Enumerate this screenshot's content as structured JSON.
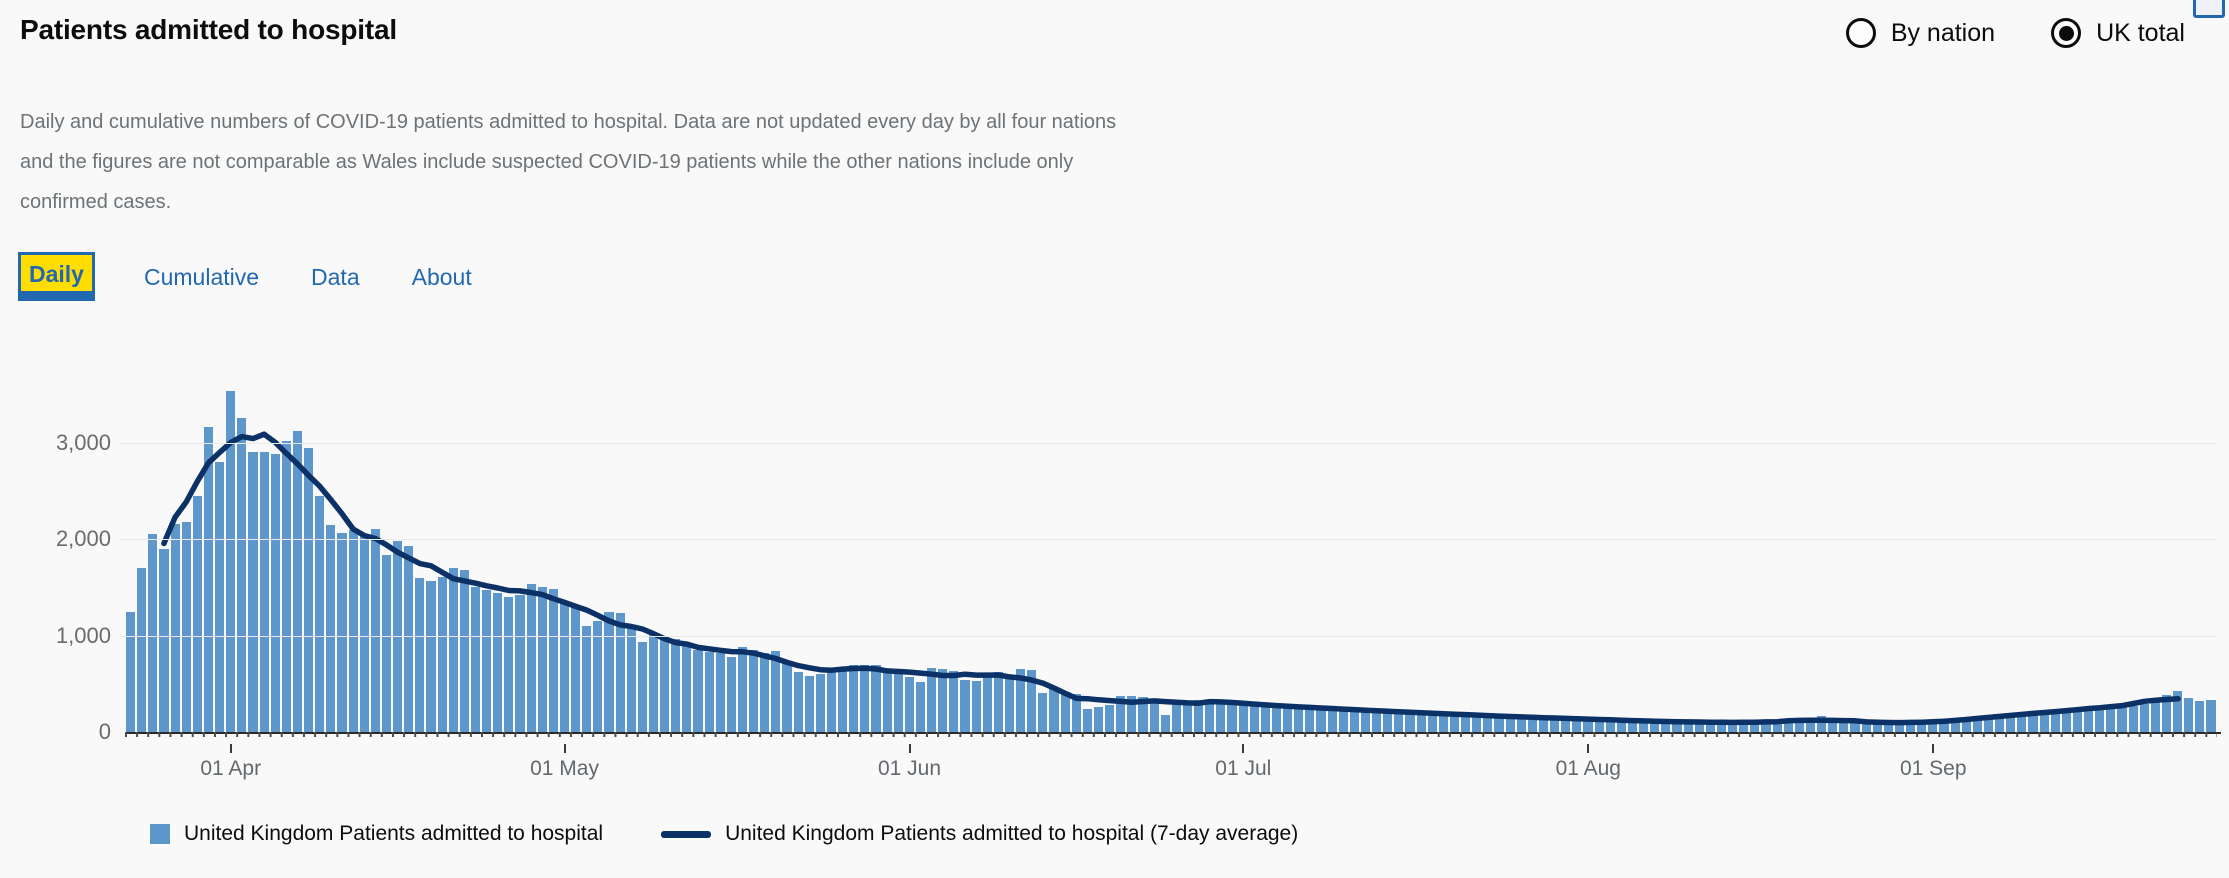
{
  "header": {
    "title": "Patients admitted to hospital",
    "description": "Daily and cumulative numbers of COVID-19 patients admitted to hospital. Data are not updated every day by all four nations and the figures are not comparable as Wales include suspected COVID-19 patients while the other nations include only confirmed cases."
  },
  "view_toggle": {
    "options": [
      {
        "label": "By nation",
        "selected": false
      },
      {
        "label": "UK total",
        "selected": true
      }
    ]
  },
  "tabs": [
    {
      "label": "Daily",
      "active": true
    },
    {
      "label": "Cumulative",
      "active": false
    },
    {
      "label": "Data",
      "active": false
    },
    {
      "label": "About",
      "active": false
    }
  ],
  "legend": [
    {
      "label": "United Kingdom Patients admitted to hospital",
      "swatch": "square",
      "color": "#5d97cc"
    },
    {
      "label": "United Kingdom Patients admitted to hospital (7-day average)",
      "swatch": "line",
      "color": "#0b3166"
    }
  ],
  "colors": {
    "background": "#f9f9f9",
    "bar": "#5d97cc",
    "average_line": "#0b3166",
    "link_blue": "#2268b1",
    "tab_highlight_yellow": "#ffdd00",
    "text_dark": "#0b0c0c",
    "text_gray": "#6c7276",
    "gridline": "#e9e9e9"
  },
  "chart_data": {
    "type": "bar",
    "title": "Patients admitted to hospital (daily, UK total)",
    "xlabel": "",
    "ylabel": "",
    "start_date": "2020-03-23",
    "y_max": 3600,
    "grid": true,
    "legend_position": "bottom",
    "y_ticks": [
      {
        "value": 0,
        "label": "0"
      },
      {
        "value": 1000,
        "label": "1,000"
      },
      {
        "value": 2000,
        "label": "2,000"
      },
      {
        "value": 3000,
        "label": "3,000"
      }
    ],
    "x_ticks": [
      {
        "index": 9,
        "label": "01 Apr"
      },
      {
        "index": 39,
        "label": "01 May"
      },
      {
        "index": 70,
        "label": "01 Jun"
      },
      {
        "index": 100,
        "label": "01 Jul"
      },
      {
        "index": 131,
        "label": "01 Aug"
      },
      {
        "index": 162,
        "label": "01 Sep"
      }
    ],
    "series": [
      {
        "name": "United Kingdom Patients admitted to hospital",
        "type": "bar",
        "color": "#5d97cc",
        "values": [
          1250,
          1700,
          2050,
          1900,
          2160,
          2180,
          2450,
          3160,
          2800,
          3540,
          3260,
          2910,
          2900,
          2880,
          3020,
          3120,
          2950,
          2450,
          2150,
          2060,
          2100,
          2030,
          2110,
          1840,
          1980,
          1930,
          1600,
          1570,
          1610,
          1700,
          1680,
          1505,
          1470,
          1440,
          1400,
          1420,
          1540,
          1500,
          1480,
          1340,
          1300,
          1100,
          1150,
          1250,
          1230,
          1100,
          930,
          1020,
          980,
          970,
          910,
          855,
          830,
          820,
          780,
          880,
          855,
          820,
          840,
          730,
          625,
          580,
          605,
          625,
          660,
          700,
          695,
          700,
          625,
          625,
          570,
          520,
          660,
          650,
          630,
          540,
          530,
          570,
          620,
          590,
          650,
          640,
          400,
          450,
          420,
          395,
          235,
          260,
          280,
          375,
          375,
          360,
          335,
          180,
          310,
          320,
          330,
          325,
          315,
          310,
          295,
          290,
          280,
          270,
          265,
          260,
          255,
          250,
          245,
          240,
          230,
          225,
          220,
          215,
          210,
          205,
          200,
          195,
          190,
          185,
          180,
          175,
          170,
          165,
          160,
          155,
          150,
          150,
          145,
          140,
          140,
          135,
          130,
          125,
          120,
          120,
          115,
          110,
          110,
          105,
          105,
          100,
          100,
          100,
          105,
          100,
          95,
          100,
          105,
          110,
          115,
          120,
          170,
          120,
          110,
          105,
          100,
          100,
          105,
          95,
          90,
          95,
          100,
          110,
          120,
          130,
          140,
          150,
          160,
          175,
          185,
          195,
          202,
          212,
          219,
          230,
          237,
          258,
          272,
          280,
          272,
          293,
          307,
          387,
          422,
          352,
          324,
          328
        ]
      },
      {
        "name": "United Kingdom Patients admitted to hospital (7-day average)",
        "type": "line",
        "color": "#0b3166",
        "derived_from": "7-day centered moving average of the daily bar series",
        "window": 7,
        "align": "center"
      }
    ]
  }
}
